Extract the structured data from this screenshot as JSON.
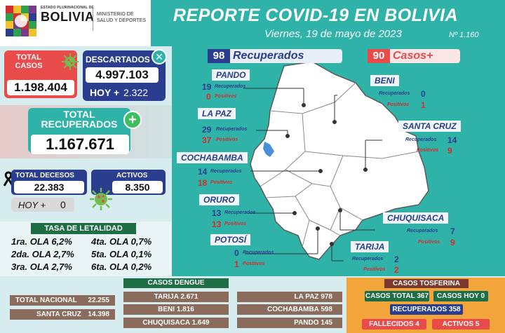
{
  "header": {
    "logo_small": "ESTADO PLURINACIONAL DE",
    "logo_big": "BOLIVIA",
    "ministry": "MINISTERIO DE SALUD Y DEPORTES",
    "title": "REPORTE COVID-19 EN BOLIVIA",
    "date": "Viernes, 19 de mayo de 2023",
    "issue": "Nº 1.160"
  },
  "stats": {
    "total_label": "TOTAL CASOS",
    "total_value": "1.198.404",
    "descartados_label": "DESCARTADOS",
    "descartados_value": "4.997.103",
    "descartados_hoy_label": "HOY +",
    "descartados_hoy_value": "2.322",
    "recuperados_label": "TOTAL RECUPERADOS",
    "recuperados_value": "1.167.671",
    "decesos_label": "TOTAL DECESOS",
    "decesos_value": "22.383",
    "decesos_hoy_label": "HOY +",
    "decesos_hoy_value": "0",
    "activos_label": "ACTIVOS",
    "activos_value": "8.350"
  },
  "letalidad": {
    "title": "TASA DE LETALIDAD",
    "rows": [
      [
        "1ra. OLA 6,2%",
        "4ta. OLA 0,7%"
      ],
      [
        "2da. OLA 2,7%",
        "5ta. OLA 0,1%"
      ],
      [
        "3ra. OLA 2,7%",
        "6ta. OLA 0,2%"
      ]
    ]
  },
  "map": {
    "recuperados_count": "98",
    "recuperados_label": "Recuperados",
    "casos_count": "90",
    "casos_label": "Casos+",
    "rec_word": "Recuperados",
    "pos_word": "Positivos",
    "departments": [
      {
        "name": "PANDO",
        "rec": "19",
        "pos": "0"
      },
      {
        "name": "LA PAZ",
        "rec": "29",
        "pos": "37"
      },
      {
        "name": "COCHABAMBA",
        "rec": "14",
        "pos": "18"
      },
      {
        "name": "ORURO",
        "rec": "13",
        "pos": "13"
      },
      {
        "name": "POTOSÍ",
        "rec": "0",
        "pos": "1"
      },
      {
        "name": "BENI",
        "rec": "0",
        "pos": "1"
      },
      {
        "name": "SANTA CRUZ",
        "rec": "14",
        "pos": "9"
      },
      {
        "name": "CHUQUISACA",
        "rec": "7",
        "pos": "9"
      },
      {
        "name": "TARIJA",
        "rec": "2",
        "pos": "2"
      }
    ]
  },
  "dengue": {
    "title": "CASOS DENGUE",
    "total_nacional_label": "TOTAL NACIONAL",
    "total_nacional_value": "22.255",
    "items": [
      {
        "name": "SANTA CRUZ",
        "value": "14.398"
      },
      {
        "name": "TARIJA",
        "value": "2.671"
      },
      {
        "name": "BENI",
        "value": "1.816"
      },
      {
        "name": "CHUQUISACA",
        "value": "1.649"
      },
      {
        "name": "LA PAZ",
        "value": "978"
      },
      {
        "name": "COCHABAMBA",
        "value": "598"
      },
      {
        "name": "PANDO",
        "value": "145"
      }
    ]
  },
  "tosferina": {
    "title": "CASOS TOSFERINA",
    "casos_total_label": "CASOS TOTAL",
    "casos_total_value": "367",
    "casos_hoy_label": "CASOS HOY",
    "casos_hoy_value": "0",
    "recuperados_label": "RECUPERADOS",
    "recuperados_value": "358",
    "fallecidos_label": "FALLECIDOS",
    "fallecidos_value": "4",
    "activos_label": "ACTIVOS",
    "activos_value": "5"
  },
  "colors": {
    "teal": "#2fb3a8",
    "navy": "#2a3d8f",
    "red": "#e94a4a",
    "green": "#1e6e45",
    "orange": "#f2a53a"
  }
}
